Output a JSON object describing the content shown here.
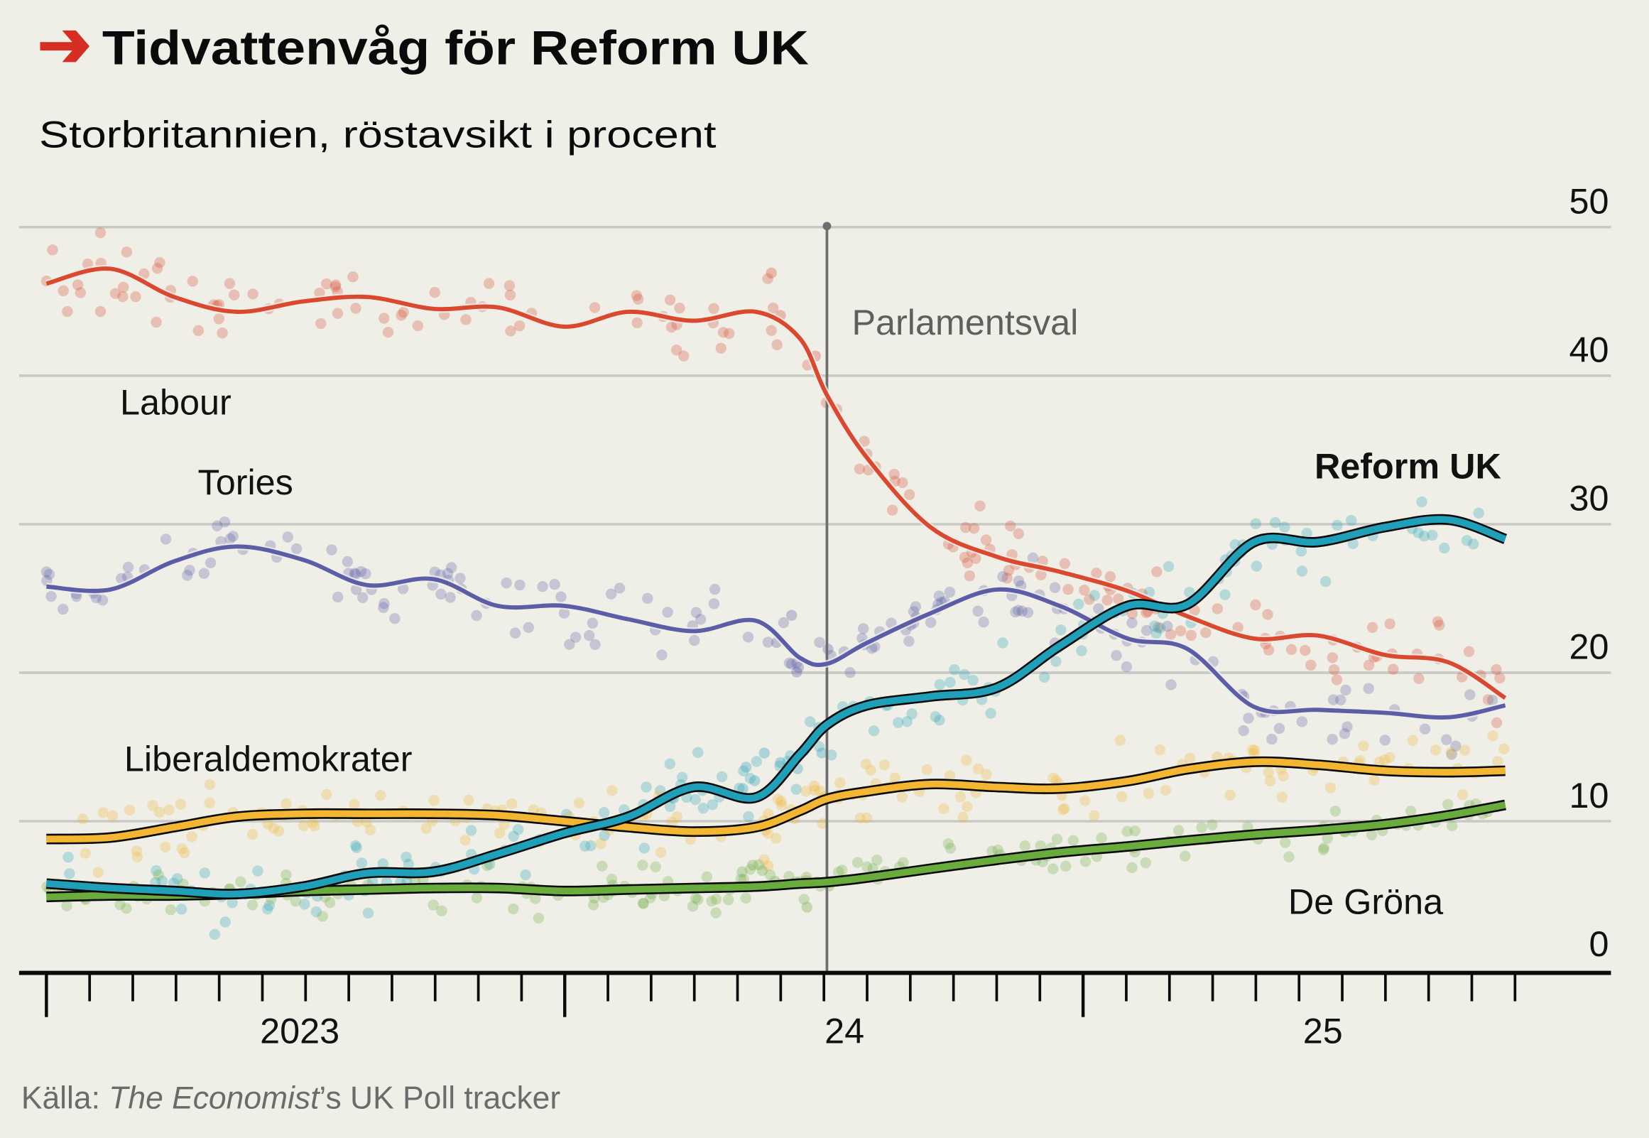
{
  "header": {
    "title": "Tidvattenvåg för Reform UK",
    "subtitle": "Storbritannien, röstavsikt i procent",
    "arrow_color": "#d62e22"
  },
  "footer": {
    "source_prefix": "Källa: ",
    "source_italic": "The Economist",
    "source_suffix": "’s UK Poll tracker"
  },
  "chart_data": {
    "type": "line",
    "title": "Tidvattenvåg för Reform UK",
    "subtitle": "Storbritannien, röstavsikt i procent",
    "ylabel": "",
    "xlabel": "",
    "ylim": [
      0,
      50
    ],
    "yticks": [
      "0",
      "10",
      "20",
      "30",
      "40",
      "50"
    ],
    "xlim": [
      "2023-01-01",
      "2025-11-01"
    ],
    "xticks": [
      {
        "label": "2023",
        "year_start": "2023-01-01",
        "year_end": "2024-01-01"
      },
      {
        "label": "24",
        "year_start": "2024-01-01",
        "year_end": "2025-01-01"
      },
      {
        "label": "25",
        "year_start": "2025-01-01",
        "year_end": "2025-11-01"
      }
    ],
    "grid": true,
    "y_axis_side": "right",
    "annotation": {
      "label": "Parlamentsval",
      "date": "2024-07-04"
    },
    "x": [
      "2023-01-01",
      "2023-02-15",
      "2023-04-01",
      "2023-05-15",
      "2023-07-01",
      "2023-08-15",
      "2023-10-01",
      "2023-11-15",
      "2024-01-01",
      "2024-02-15",
      "2024-04-01",
      "2024-05-15",
      "2024-06-15",
      "2024-07-04",
      "2024-08-01",
      "2024-09-15",
      "2024-11-01",
      "2024-12-15",
      "2025-02-01",
      "2025-03-15",
      "2025-05-01",
      "2025-06-15",
      "2025-08-01",
      "2025-09-15",
      "2025-10-25"
    ],
    "series": [
      {
        "name": "Labour",
        "color": "#d9482f",
        "outlined": false,
        "bold_label": false,
        "values": [
          46.2,
          47.2,
          45.3,
          44.3,
          45.0,
          45.3,
          44.5,
          44.6,
          43.3,
          44.3,
          43.7,
          44.3,
          42.5,
          38.7,
          34.5,
          29.8,
          27.8,
          26.8,
          25.5,
          23.8,
          22.3,
          22.5,
          21.2,
          20.7,
          18.3
        ]
      },
      {
        "name": "Tories",
        "color": "#5b5ea6",
        "outlined": false,
        "bold_label": false,
        "values": [
          25.8,
          25.6,
          27.5,
          28.5,
          27.6,
          25.9,
          26.3,
          24.5,
          24.5,
          23.6,
          22.8,
          23.5,
          21.0,
          20.6,
          22.0,
          24.0,
          25.6,
          24.5,
          22.3,
          21.6,
          17.7,
          17.5,
          17.3,
          17.0,
          17.8
        ]
      },
      {
        "name": "Reform UK",
        "color": "#1fa0b8",
        "outlined": true,
        "bold_label": true,
        "values": [
          5.8,
          5.5,
          5.3,
          5.1,
          5.6,
          6.5,
          6.6,
          7.8,
          9.2,
          10.3,
          12.3,
          11.6,
          14.5,
          16.5,
          17.8,
          18.4,
          19.0,
          21.8,
          24.5,
          24.6,
          28.8,
          28.8,
          29.8,
          30.3,
          29.0
        ]
      },
      {
        "name": "Liberaldemokrater",
        "color": "#f2b632",
        "outlined": true,
        "bold_label": false,
        "values": [
          8.8,
          8.9,
          9.6,
          10.3,
          10.5,
          10.5,
          10.5,
          10.4,
          10.0,
          9.6,
          9.3,
          9.6,
          10.7,
          11.5,
          12.0,
          12.5,
          12.3,
          12.2,
          12.7,
          13.5,
          14.0,
          13.8,
          13.4,
          13.3,
          13.4
        ]
      },
      {
        "name": "De Gröna",
        "color": "#6aab3d",
        "outlined": true,
        "bold_label": false,
        "values": [
          4.9,
          5.0,
          5.0,
          5.1,
          5.3,
          5.4,
          5.5,
          5.5,
          5.3,
          5.4,
          5.5,
          5.6,
          5.8,
          5.9,
          6.2,
          6.8,
          7.4,
          7.9,
          8.3,
          8.7,
          9.1,
          9.4,
          9.8,
          10.4,
          11.1
        ]
      }
    ]
  }
}
